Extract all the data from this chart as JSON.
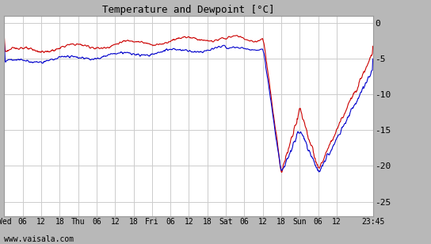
{
  "title": "Temperature and Dewpoint [°C]",
  "yticks": [
    0,
    -5,
    -10,
    -15,
    -20,
    -25
  ],
  "ylim": [
    -27,
    1.0
  ],
  "bg_color": "#ffffff",
  "outer_color": "#b8b8b8",
  "grid_color": "#cccccc",
  "temp_color": "#cc0000",
  "dewp_color": "#0000cc",
  "line_width": 0.8,
  "bottom_text": "www.vaisala.com",
  "xtick_labels": [
    "Wed",
    "06",
    "12",
    "18",
    "Thu",
    "06",
    "12",
    "18",
    "Fri",
    "06",
    "12",
    "18",
    "Sat",
    "06",
    "12",
    "18",
    "Sun",
    "06",
    "12",
    "23:45"
  ],
  "total_hours": 119.75,
  "num_points": 800
}
